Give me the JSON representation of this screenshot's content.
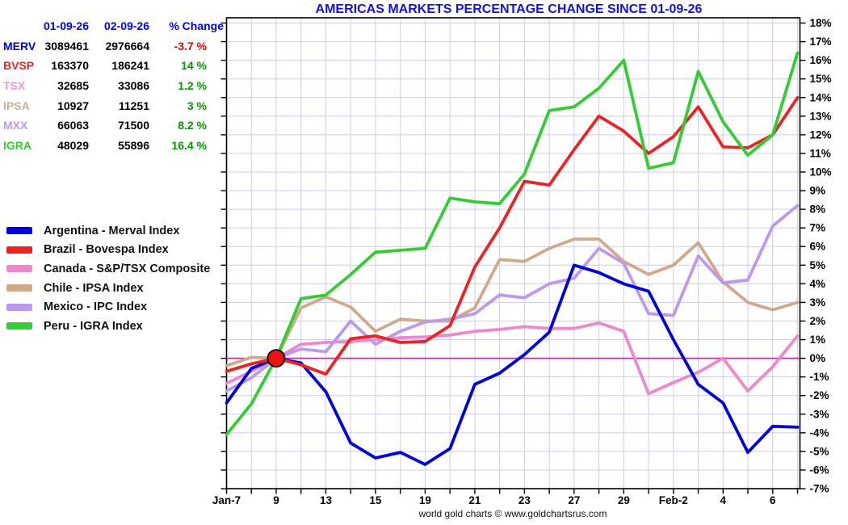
{
  "title": "AMERICAS MARKETS PERCENTAGE CHANGE SINCE 01-09-26",
  "footer": "world gold charts © www.goldchartsrus.com",
  "colors": {
    "title": "#1111ee",
    "table_header": "#0000ee",
    "grid": "#ccccee",
    "zero_line": "#ff00cc",
    "positive": "#009900",
    "negative": "#ee0000",
    "axis": "#000000"
  },
  "summary_table": {
    "headers": [
      "01-09-26",
      "02-09-26",
      "% Change"
    ],
    "rows": [
      {
        "label": "MERV",
        "label_color": "#0000ee",
        "v1": "3089461",
        "v2": "2976664",
        "change": "-3.7 %",
        "change_color": "#ee0000"
      },
      {
        "label": "BVSP",
        "label_color": "#ee2222",
        "v1": "163370",
        "v2": "186241",
        "change": "14 %",
        "change_color": "#009900"
      },
      {
        "label": "TSX",
        "label_color": "#ee99cc",
        "v1": "32685",
        "v2": "33086",
        "change": "1.2 %",
        "change_color": "#009900"
      },
      {
        "label": "IPSA",
        "label_color": "#d8ab8e",
        "v1": "10927",
        "v2": "11251",
        "change": "3 %",
        "change_color": "#009900"
      },
      {
        "label": "MXX",
        "label_color": "#bb99ee",
        "v1": "66063",
        "v2": "71500",
        "change": "8.2 %",
        "change_color": "#009900"
      },
      {
        "label": "IGRA",
        "label_color": "#33cc33",
        "v1": "48029",
        "v2": "55896",
        "change": "16.4 %",
        "change_color": "#009900"
      }
    ]
  },
  "legend": [
    {
      "label": "Argentina - Merval Index",
      "color": "#0000dd"
    },
    {
      "label": "Brazil - Bovespa Index",
      "color": "#ee2222"
    },
    {
      "label": "Canada - S&P/TSX Composite",
      "color": "#ee88cc"
    },
    {
      "label": "Chile - IPSA Index",
      "color": "#d2a88a"
    },
    {
      "label": "Mexico - IPC Index",
      "color": "#bb99ee"
    },
    {
      "label": "Peru - IGRA Index",
      "color": "#33cc33"
    }
  ],
  "chart_data": {
    "type": "line",
    "title": "AMERICAS MARKETS PERCENTAGE CHANGE SINCE 01-09-26",
    "y_unit": "%",
    "ylim": [
      -7,
      18
    ],
    "y_tick_step": 1,
    "grid": true,
    "legend_position": "left",
    "zero_line_value": 0,
    "x_dates": [
      "Jan-7",
      "Jan-8",
      "Jan-9",
      "Jan-12",
      "Jan-13",
      "Jan-14",
      "Jan-15",
      "Jan-16",
      "Jan-19",
      "Jan-20",
      "Jan-21",
      "Jan-22",
      "Jan-23",
      "Jan-26",
      "Jan-27",
      "Jan-28",
      "Jan-29",
      "Jan-30",
      "Feb-2",
      "Feb-3",
      "Feb-4",
      "Feb-5",
      "Feb-6",
      "Feb-9"
    ],
    "x_tick_labels": [
      {
        "index": 0,
        "label": "Jan-7"
      },
      {
        "index": 2,
        "label": "9"
      },
      {
        "index": 4,
        "label": "13"
      },
      {
        "index": 6,
        "label": "15"
      },
      {
        "index": 8,
        "label": "19"
      },
      {
        "index": 10,
        "label": "21"
      },
      {
        "index": 12,
        "label": "23"
      },
      {
        "index": 14,
        "label": "27"
      },
      {
        "index": 16,
        "label": "29"
      },
      {
        "index": 18,
        "label": "Feb-2"
      },
      {
        "index": 20,
        "label": "4"
      },
      {
        "index": 22,
        "label": "6"
      }
    ],
    "marker": {
      "x_index": 2,
      "value": 0,
      "fill": "#ee1111",
      "outline": "#000000",
      "radius": 10.5
    },
    "series": [
      {
        "name": "Argentina - Merval Index",
        "color": "#0000dd",
        "values": [
          -2.4,
          -0.55,
          0,
          -0.25,
          -1.8,
          -4.55,
          -5.35,
          -5.05,
          -5.7,
          -4.85,
          -1.4,
          -0.8,
          0.2,
          1.4,
          5.0,
          4.6,
          4.0,
          3.6,
          1.0,
          -1.4,
          -2.4,
          -5.05,
          -3.65,
          -3.7
        ]
      },
      {
        "name": "Brazil - Bovespa Index",
        "color": "#ee2222",
        "values": [
          -0.7,
          -0.3,
          0,
          -0.35,
          -0.85,
          1.05,
          1.2,
          0.85,
          0.9,
          1.75,
          4.9,
          7.0,
          9.5,
          9.3,
          11.2,
          13.0,
          12.2,
          11.0,
          11.9,
          13.5,
          11.35,
          11.3,
          12.0,
          14.0
        ]
      },
      {
        "name": "Canada - S&P/TSX Composite",
        "color": "#ee88cc",
        "values": [
          -1.35,
          -0.7,
          0,
          0.75,
          0.85,
          0.9,
          1.0,
          1.1,
          1.15,
          1.25,
          1.45,
          1.55,
          1.7,
          1.6,
          1.6,
          1.9,
          1.45,
          -1.9,
          -1.3,
          -0.75,
          0.0,
          -1.75,
          -0.45,
          1.2
        ]
      },
      {
        "name": "Chile - IPSA Index",
        "color": "#d2a88a",
        "values": [
          -0.4,
          0.05,
          0,
          2.7,
          3.3,
          2.75,
          1.45,
          2.1,
          2.0,
          2.0,
          2.7,
          5.3,
          5.2,
          5.9,
          6.4,
          6.4,
          5.2,
          4.5,
          5.0,
          6.2,
          4.1,
          3.0,
          2.6,
          3.0
        ]
      },
      {
        "name": "Mexico - IPC Index",
        "color": "#bb99ee",
        "values": [
          -1.75,
          -1.05,
          0,
          0.5,
          0.35,
          2.0,
          0.75,
          1.45,
          1.95,
          2.1,
          2.4,
          3.4,
          3.25,
          4.0,
          4.3,
          5.9,
          5.1,
          2.4,
          2.3,
          5.5,
          4.05,
          4.2,
          7.1,
          8.2
        ]
      },
      {
        "name": "Peru - IGRA Index",
        "color": "#33cc33",
        "values": [
          -4.1,
          -2.45,
          0,
          3.2,
          3.4,
          4.5,
          5.7,
          5.8,
          5.9,
          8.6,
          8.4,
          8.3,
          9.9,
          13.3,
          13.5,
          14.5,
          16.0,
          10.2,
          10.5,
          15.4,
          12.7,
          10.9,
          12.0,
          16.4
        ]
      }
    ]
  }
}
